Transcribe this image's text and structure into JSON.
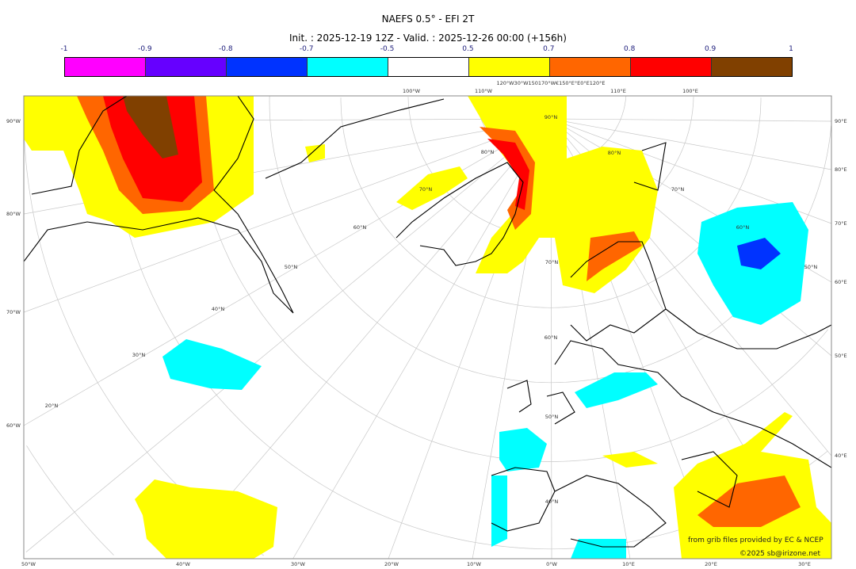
{
  "title": "NAEFS 0.5° - EFI 2T",
  "subtitle": "Init. : 2025-12-19 12Z - Valid. : 2025-12-26 00:00 (+156h)",
  "colorbar": {
    "ticks": [
      "-1",
      "-0.9",
      "-0.8",
      "-0.7",
      "-0.5",
      "0.5",
      "0.7",
      "0.8",
      "0.9",
      "1"
    ],
    "colors": [
      "#ff00ff",
      "#6600ff",
      "#0033ff",
      "#00ffff",
      "#ffffff",
      "#ffff00",
      "#ff6600",
      "#ff0000",
      "#804000"
    ]
  },
  "map": {
    "left_labels": [
      "90°W",
      "80°W",
      "70°W",
      "60°W"
    ],
    "right_labels": [
      "90°E",
      "80°E",
      "70°E",
      "60°E",
      "50°E",
      "40°E"
    ],
    "bottom_labels": [
      "50°W",
      "40°W",
      "30°W",
      "20°W",
      "10°W",
      "0°W",
      "10°E",
      "20°E",
      "30°E"
    ],
    "top_labels": [
      "100°W",
      "110°W",
      "120°W30°W150170°W€150°E°E0°E120°E",
      "110°E",
      "100°E"
    ],
    "interior_labels": [
      "20°N",
      "30°N",
      "40°N",
      "50°N",
      "60°N",
      "70°N",
      "80°N",
      "90°N",
      "80°N",
      "70°N",
      "60°N",
      "50°N",
      "70°N",
      "60°N",
      "50°N",
      "40°N"
    ]
  },
  "credits": {
    "source": "from grib files provided by EC & NCEP",
    "copyright": "©2025 sb@irizone.net"
  }
}
